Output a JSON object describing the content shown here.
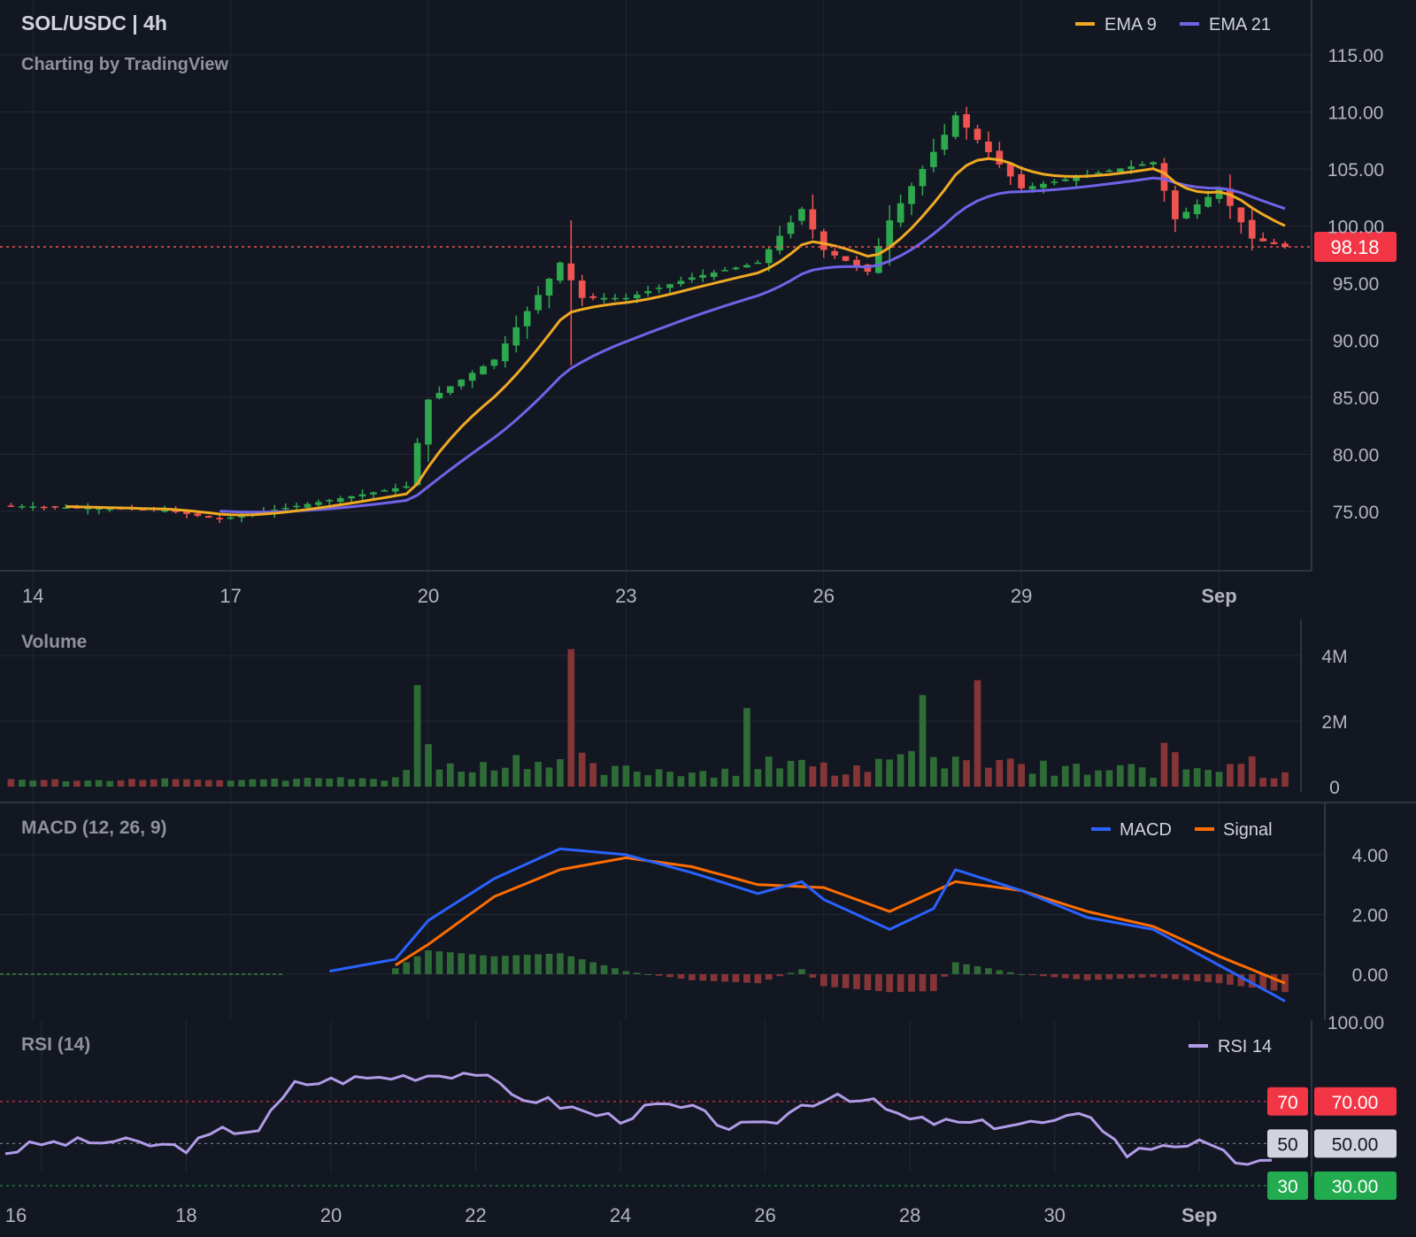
{
  "header": {
    "symbol": "SOL/USDC | 4h",
    "attribution": "Charting by TradingView"
  },
  "colors": {
    "background": "#131722",
    "grid": "#232733",
    "up": "#2ea84e",
    "down": "#f05350",
    "up_volume": "#2e6b36",
    "down_volume": "#853536",
    "ema9": "#f0a922",
    "ema21": "#7163e8",
    "macd": "#2962ff",
    "signal": "#ff6d00",
    "rsi": "#b19ce8",
    "label_red": "#f23645",
    "label_gray": "#d1d4dc",
    "label_green": "#22ab4f"
  },
  "chart_data": [
    {
      "type": "candlestick",
      "title": "SOL/USDC | 4h",
      "legend": [
        "EMA 9",
        "EMA 21"
      ],
      "legend_position": "top-right",
      "x_ticks": [
        "14",
        "17",
        "20",
        "23",
        "26",
        "29",
        "Sep"
      ],
      "x_range": [
        "Aug 13 12:00",
        "Sep 2 00:00"
      ],
      "y_ticks": [
        "75.00",
        "80.00",
        "85.00",
        "90.00",
        "95.00",
        "100.00",
        "105.00",
        "110.00",
        "115.00"
      ],
      "ylim": [
        70,
        119
      ],
      "grid": true,
      "current_price": "98.18",
      "keypoints": [
        {
          "date": "Aug 13",
          "price": 75.6
        },
        {
          "date": "Aug 16",
          "price": 75.1
        },
        {
          "date": "Aug 16 20:00",
          "price": 74.3
        },
        {
          "date": "Aug 19",
          "price": 76.5
        },
        {
          "date": "Aug 19 16:00",
          "price": 77.2
        },
        {
          "date": "Aug 20",
          "price": 84.8
        },
        {
          "date": "Aug 21",
          "price": 88.3
        },
        {
          "date": "Aug 22",
          "price": 96.8
        },
        {
          "date": "Aug 22 08:00",
          "price": 93.7
        },
        {
          "date": "Aug 23",
          "price": 93.7
        },
        {
          "date": "Aug 24",
          "price": 95.5
        },
        {
          "date": "Aug 25",
          "price": 96.8
        },
        {
          "date": "Aug 25 16:00",
          "price": 101.5
        },
        {
          "date": "Aug 26",
          "price": 97.9
        },
        {
          "date": "Aug 26 16:00",
          "price": 96.0
        },
        {
          "date": "Aug 27",
          "price": 100.5
        },
        {
          "date": "Aug 27 20:00",
          "price": 108.0
        },
        {
          "date": "Aug 28",
          "price": 109.7
        },
        {
          "date": "Aug 28 16:00",
          "price": 105.4
        },
        {
          "date": "Aug 29",
          "price": 103.3
        },
        {
          "date": "Aug 30",
          "price": 104.5
        },
        {
          "date": "Aug 31",
          "price": 105.6
        },
        {
          "date": "Aug 31 08:00",
          "price": 100.6
        },
        {
          "date": "Sep 1",
          "price": 103.2
        },
        {
          "date": "Sep 1 12:00",
          "price": 98.9
        },
        {
          "date": "Sep 2",
          "price": 98.18
        }
      ]
    },
    {
      "type": "bar",
      "title": "Volume",
      "y_ticks": [
        "0",
        "2M",
        "4M"
      ],
      "ylim": [
        0,
        4200000
      ],
      "unit": "shares",
      "notable_values": [
        {
          "date": "Aug 19 20:00",
          "value": 3100000
        },
        {
          "date": "Aug 22 04:00",
          "value": 4200000
        },
        {
          "date": "Aug 24 20:00",
          "value": 2400000
        },
        {
          "date": "Aug 27 12:00",
          "value": 2800000
        },
        {
          "date": "Aug 28 08:00",
          "value": 3250000
        }
      ]
    },
    {
      "type": "line",
      "title": "MACD (12, 26, 9)",
      "legend": [
        "MACD",
        "Signal"
      ],
      "legend_position": "top-right",
      "y_ticks": [
        "0.00",
        "2.00",
        "4.00"
      ],
      "ylim": [
        -1,
        4.8
      ],
      "series": [
        {
          "name": "MACD",
          "points": [
            {
              "date": "Aug 18 12:00",
              "value": 0.1
            },
            {
              "date": "Aug 19 12:00",
              "value": 0.5
            },
            {
              "date": "Aug 20",
              "value": 1.8
            },
            {
              "date": "Aug 21",
              "value": 3.2
            },
            {
              "date": "Aug 22",
              "value": 4.2
            },
            {
              "date": "Aug 23",
              "value": 4.0
            },
            {
              "date": "Aug 24",
              "value": 3.4
            },
            {
              "date": "Aug 25",
              "value": 2.7
            },
            {
              "date": "Aug 25 16:00",
              "value": 3.1
            },
            {
              "date": "Aug 26",
              "value": 2.5
            },
            {
              "date": "Aug 27",
              "value": 1.5
            },
            {
              "date": "Aug 27 16:00",
              "value": 2.2
            },
            {
              "date": "Aug 28",
              "value": 3.5
            },
            {
              "date": "Aug 29",
              "value": 2.8
            },
            {
              "date": "Aug 30",
              "value": 1.9
            },
            {
              "date": "Aug 31",
              "value": 1.5
            },
            {
              "date": "Sep 1",
              "value": 0.3
            },
            {
              "date": "Sep 2",
              "value": -0.9
            }
          ]
        },
        {
          "name": "Signal",
          "points": [
            {
              "date": "Aug 19 12:00",
              "value": 0.3
            },
            {
              "date": "Aug 20",
              "value": 1.0
            },
            {
              "date": "Aug 21",
              "value": 2.6
            },
            {
              "date": "Aug 22",
              "value": 3.5
            },
            {
              "date": "Aug 23",
              "value": 3.9
            },
            {
              "date": "Aug 24",
              "value": 3.6
            },
            {
              "date": "Aug 25",
              "value": 3.0
            },
            {
              "date": "Aug 26",
              "value": 2.9
            },
            {
              "date": "Aug 27",
              "value": 2.1
            },
            {
              "date": "Aug 28",
              "value": 3.1
            },
            {
              "date": "Aug 29",
              "value": 2.8
            },
            {
              "date": "Aug 30",
              "value": 2.1
            },
            {
              "date": "Aug 31",
              "value": 1.6
            },
            {
              "date": "Sep 1",
              "value": 0.6
            },
            {
              "date": "Sep 2",
              "value": -0.3
            }
          ]
        }
      ],
      "histogram_note": "difference MACD minus Signal shown as green/red bars"
    },
    {
      "type": "line",
      "title": "RSI (14)",
      "legend": [
        "RSI 14"
      ],
      "legend_position": "top-right",
      "x_ticks": [
        "16",
        "18",
        "20",
        "22",
        "24",
        "26",
        "28",
        "30",
        "Sep"
      ],
      "y_ticks": [
        "100.00",
        "70.00",
        "50.00",
        "30.00"
      ],
      "ylim": [
        22,
        100
      ],
      "levels": [
        70,
        50,
        30
      ],
      "level_labels": [
        "70",
        "50",
        "30"
      ],
      "level_values": [
        "70.00",
        "50.00",
        "30.00"
      ],
      "series": [
        {
          "name": "RSI 14",
          "points": [
            {
              "date": "Aug 15 12:00",
              "value": 46
            },
            {
              "date": "Aug 16",
              "value": 50
            },
            {
              "date": "Aug 17",
              "value": 51
            },
            {
              "date": "Aug 18",
              "value": 48
            },
            {
              "date": "Aug 18 12:00",
              "value": 56
            },
            {
              "date": "Aug 19",
              "value": 57
            },
            {
              "date": "Aug 19 12:00",
              "value": 78
            },
            {
              "date": "Aug 20",
              "value": 80
            },
            {
              "date": "Aug 21",
              "value": 82
            },
            {
              "date": "Aug 22",
              "value": 84
            },
            {
              "date": "Aug 22 12:00",
              "value": 73
            },
            {
              "date": "Aug 23",
              "value": 70
            },
            {
              "date": "Aug 23 12:00",
              "value": 65
            },
            {
              "date": "Aug 24",
              "value": 62
            },
            {
              "date": "Aug 24 12:00",
              "value": 68
            },
            {
              "date": "Aug 25",
              "value": 66
            },
            {
              "date": "Aug 25 12:00",
              "value": 58
            },
            {
              "date": "Aug 26",
              "value": 58
            },
            {
              "date": "Aug 26 12:00",
              "value": 68
            },
            {
              "date": "Aug 27",
              "value": 74
            },
            {
              "date": "Aug 27 12:00",
              "value": 69
            },
            {
              "date": "Aug 28",
              "value": 61
            },
            {
              "date": "Aug 28 12:00",
              "value": 60
            },
            {
              "date": "Aug 29",
              "value": 59
            },
            {
              "date": "Aug 30",
              "value": 60
            },
            {
              "date": "Aug 30 12:00",
              "value": 64
            },
            {
              "date": "Aug 31",
              "value": 45
            },
            {
              "date": "Aug 31 12:00",
              "value": 50
            },
            {
              "date": "Sep 1",
              "value": 50
            },
            {
              "date": "Sep 1 12:00",
              "value": 42
            },
            {
              "date": "Sep 2",
              "value": 40
            }
          ]
        }
      ]
    }
  ]
}
